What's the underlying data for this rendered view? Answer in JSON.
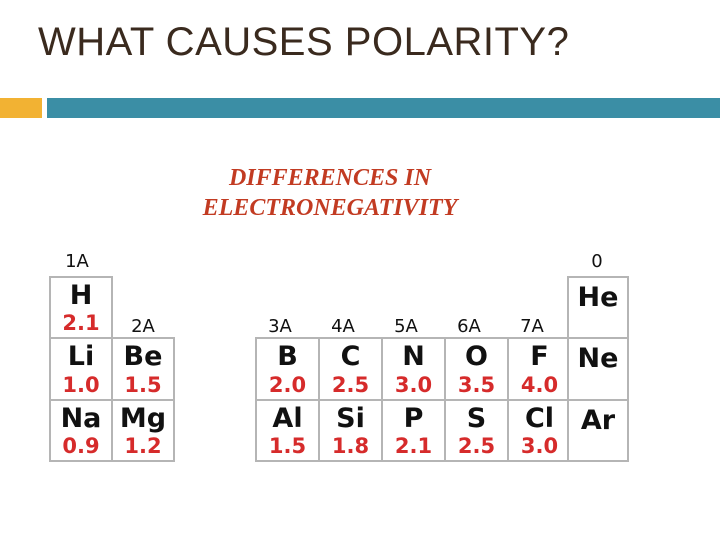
{
  "slide": {
    "title": "WHAT CAUSES POLARITY?",
    "subtitle_line1": "DIFFERENCES IN",
    "subtitle_line2": "ELECTRONEGATIVITY"
  },
  "colors": {
    "title": "#3a2a1e",
    "accent_bar": "#f2b233",
    "main_bar": "#3b8ea5",
    "subtitle": "#c23b22",
    "en_value": "#d62b2b",
    "cell_border": "#b5b5b5"
  },
  "groups": {
    "g1": "1A",
    "g2": "2A",
    "g3": "3A",
    "g4": "4A",
    "g5": "5A",
    "g6": "6A",
    "g7": "7A",
    "g0": "0"
  },
  "elements": [
    {
      "symbol": "H",
      "en": "2.1"
    },
    {
      "symbol": "Li",
      "en": "1.0"
    },
    {
      "symbol": "Na",
      "en": "0.9"
    },
    {
      "symbol": "Be",
      "en": "1.5"
    },
    {
      "symbol": "Mg",
      "en": "1.2"
    },
    {
      "symbol": "B",
      "en": "2.0"
    },
    {
      "symbol": "Al",
      "en": "1.5"
    },
    {
      "symbol": "C",
      "en": "2.5"
    },
    {
      "symbol": "Si",
      "en": "1.8"
    },
    {
      "symbol": "N",
      "en": "3.0"
    },
    {
      "symbol": "P",
      "en": "2.1"
    },
    {
      "symbol": "O",
      "en": "3.5"
    },
    {
      "symbol": "S",
      "en": "2.5"
    },
    {
      "symbol": "F",
      "en": "4.0"
    },
    {
      "symbol": "Cl",
      "en": "3.0"
    },
    {
      "symbol": "He",
      "en": ""
    },
    {
      "symbol": "Ne",
      "en": ""
    },
    {
      "symbol": "Ar",
      "en": ""
    }
  ]
}
